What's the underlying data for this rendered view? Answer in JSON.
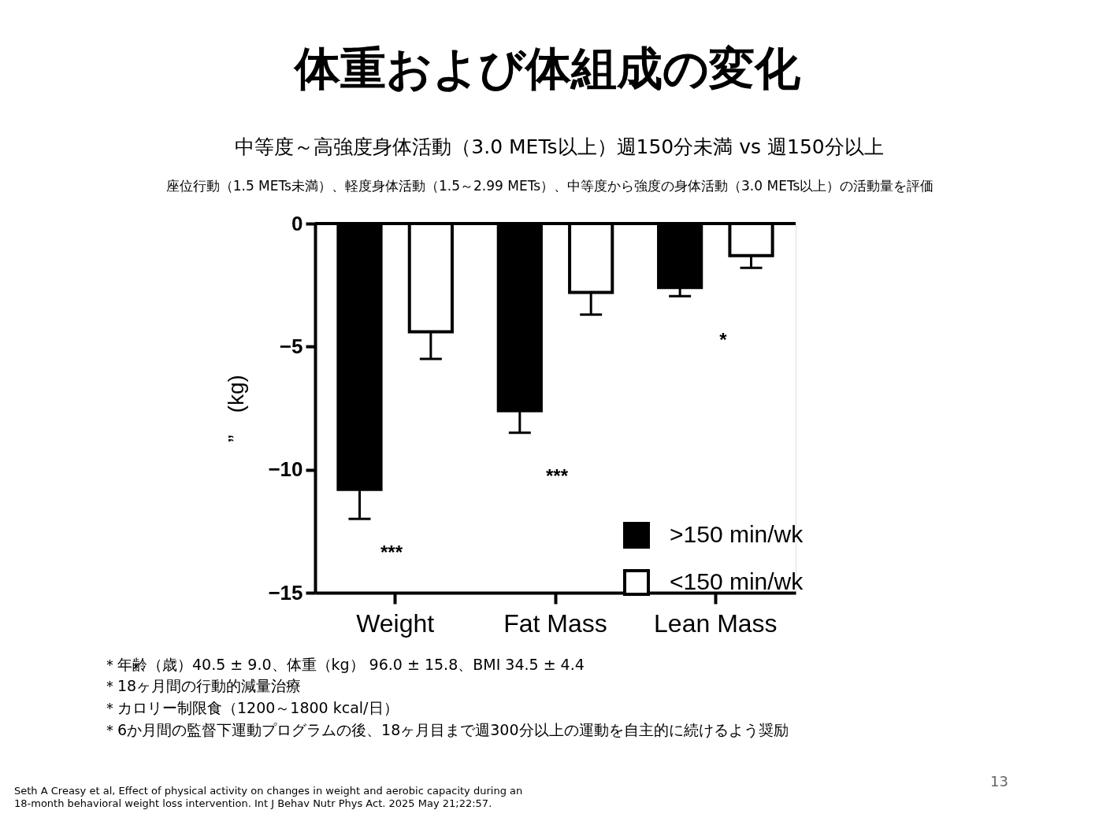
{
  "chart_data": {
    "type": "bar",
    "title": "体重および体組成の変化",
    "subtitle": "中等度～高強度身体活動（3.0 METs以上）週150分未満 vs 週150分以上",
    "ylabel": "”　(kg)",
    "categories": [
      "Weight",
      "Fat Mass",
      "Lean Mass"
    ],
    "series": [
      {
        "name": ">150 min/wk",
        "color": "#000000",
        "values": [
          -10.8,
          -7.6,
          -2.6
        ],
        "errors": [
          [
            -12.0,
            -10.8
          ],
          [
            -8.5,
            -7.6
          ],
          [
            -2.95,
            -2.6
          ]
        ]
      },
      {
        "name": "<150 min/wk",
        "color": "#ffffff",
        "values": [
          -4.4,
          -2.8,
          -1.3
        ],
        "errors": [
          [
            -5.5,
            -4.4
          ],
          [
            -3.7,
            -2.8
          ],
          [
            -1.8,
            -1.3
          ]
        ]
      }
    ],
    "ylim": [
      -15,
      0
    ],
    "yticks": [
      -15,
      -10,
      -5,
      0
    ],
    "grid": false,
    "legend": "bottom right",
    "annotations": [
      "***",
      "***",
      "*",
      "座位行動（1.5 METs未満）、軽度身体活動（1.5～2.99 METs）、中等度から強度の身体活動（3.0 METs以上）の活動量を評価",
      "＊年齢（歳）40.5 ± 9.0、体重（kg） 96.0 ± 15.8、BMI 34.5 ± 4.4",
      "＊18ヶ月間の行動的減量治療",
      "＊カロリー制限食（1200～1800 kcal/日）",
      "＊6か月間の監督下運動プログラムの後、18ヶ月目まで週300分以上の運動を自主的に続けるよう奨励",
      "Seth A Creasy et al, Effect of physical activity on changes in weight and aerobic capacity during an\n18-month behavioral weight loss intervention. Int J Behav Nutr Phys Act. 2025 May 21;22:57.",
      "13"
    ]
  }
}
